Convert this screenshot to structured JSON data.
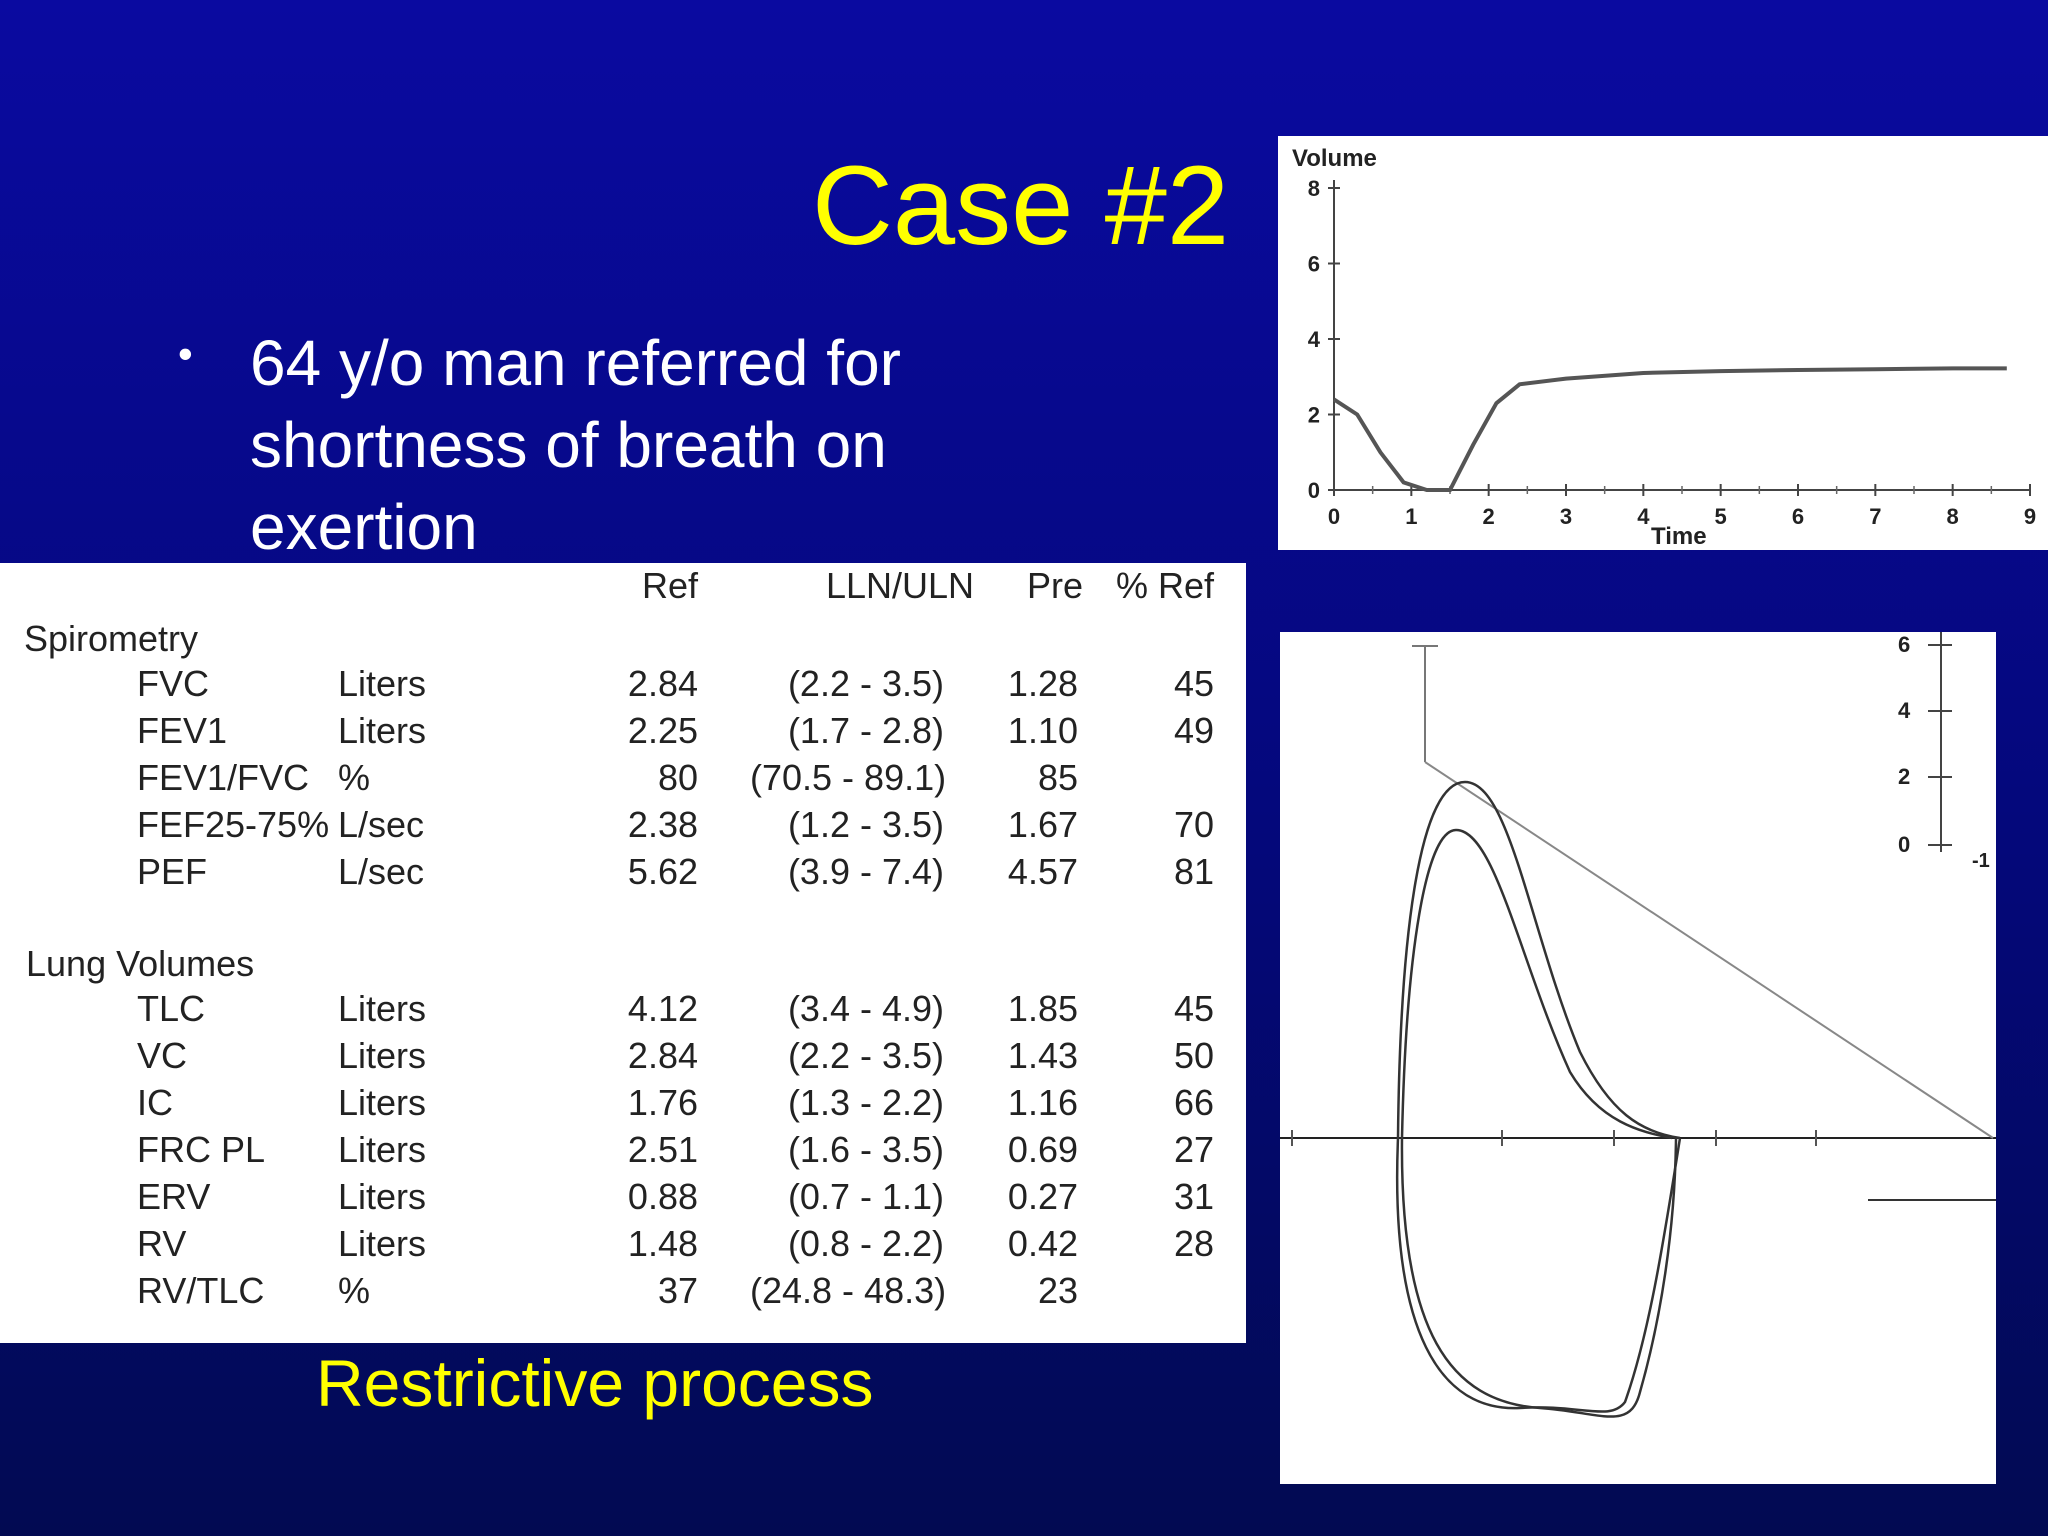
{
  "slide": {
    "title": "Case #2",
    "bullet": "64 y/o man referred for shortness of breath on exertion",
    "caption": "Restrictive process"
  },
  "table": {
    "headers": {
      "ref": "Ref",
      "lln": "LLN/ULN",
      "pre": "Pre",
      "pct": "% Ref"
    },
    "sections": [
      {
        "title": "Spirometry",
        "rows": [
          {
            "name": "FVC",
            "unit": "Liters",
            "ref": "2.84",
            "range": "(2.2 - 3.5)",
            "pre": "1.28",
            "pct": "45"
          },
          {
            "name": "FEV1",
            "unit": "Liters",
            "ref": "2.25",
            "range": "(1.7 - 2.8)",
            "pre": "1.10",
            "pct": "49"
          },
          {
            "name": "FEV1/FVC",
            "unit": "%",
            "ref": "80",
            "range": "(70.5 - 89.1)",
            "pre": "85",
            "pct": ""
          },
          {
            "name": "FEF25-75%",
            "unit": "L/sec",
            "ref": "2.38",
            "range": "(1.2 - 3.5)",
            "pre": "1.67",
            "pct": "70"
          },
          {
            "name": "PEF",
            "unit": "L/sec",
            "ref": "5.62",
            "range": "(3.9 - 7.4)",
            "pre": "4.57",
            "pct": "81"
          }
        ]
      },
      {
        "title": "Lung Volumes",
        "rows": [
          {
            "name": "TLC",
            "unit": "Liters",
            "ref": "4.12",
            "range": "(3.4 - 4.9)",
            "pre": "1.85",
            "pct": "45"
          },
          {
            "name": "VC",
            "unit": "Liters",
            "ref": "2.84",
            "range": "(2.2 - 3.5)",
            "pre": "1.43",
            "pct": "50"
          },
          {
            "name": "IC",
            "unit": "Liters",
            "ref": "1.76",
            "range": "(1.3 - 2.2)",
            "pre": "1.16",
            "pct": "66"
          },
          {
            "name": "FRC PL",
            "unit": "Liters",
            "ref": "2.51",
            "range": "(1.6 - 3.5)",
            "pre": "0.69",
            "pct": "27"
          },
          {
            "name": "ERV",
            "unit": "Liters",
            "ref": "0.88",
            "range": "(0.7 - 1.1)",
            "pre": "0.27",
            "pct": "31"
          },
          {
            "name": "RV",
            "unit": "Liters",
            "ref": "1.48",
            "range": "(0.8 - 2.2)",
            "pre": "0.42",
            "pct": "28"
          },
          {
            "name": "RV/TLC",
            "unit": "%",
            "ref": "37",
            "range": "(24.8 - 48.3)",
            "pre": "23",
            "pct": ""
          }
        ]
      }
    ]
  },
  "volume_time": {
    "ylabel": "Volume",
    "xlabel": "Time",
    "yticks": [
      "8",
      "6",
      "4",
      "2",
      "0"
    ],
    "xticks": [
      "0",
      "1",
      "2",
      "3",
      "4",
      "5",
      "6",
      "7",
      "8",
      "9"
    ]
  },
  "flow_volume": {
    "yticks": [
      "6",
      "4",
      "2",
      "0"
    ],
    "xtick_partial": "-1"
  },
  "chart_data": {
    "type": "line",
    "xlabel": "Time",
    "ylabel": "Volume",
    "xlim": [
      0,
      9
    ],
    "ylim": [
      0,
      8
    ],
    "x": [
      0,
      0.3,
      0.6,
      0.9,
      1.2,
      1.5,
      1.8,
      2.1,
      2.4,
      3,
      4,
      5,
      6,
      7,
      8,
      8.7
    ],
    "series": [
      {
        "values": [
          2.4,
          2.0,
          1.0,
          0.2,
          0.0,
          0.0,
          1.2,
          2.3,
          2.8,
          2.95,
          3.1,
          3.15,
          3.18,
          3.2,
          3.22,
          3.22
        ]
      }
    ]
  },
  "colors": {
    "title": "#ffff00",
    "text": "#ffffff",
    "bg_top": "#0a0aa0",
    "bg_bottom": "#020a52"
  }
}
